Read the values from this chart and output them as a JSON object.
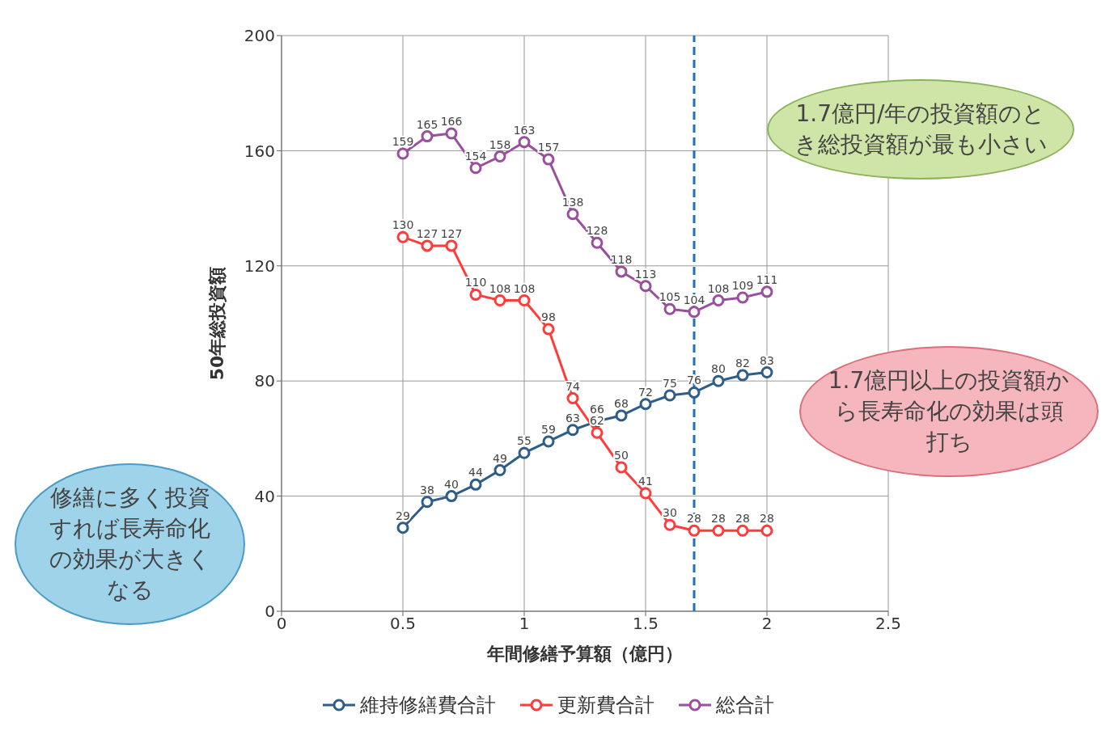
{
  "chart_data": {
    "type": "line",
    "xlabel": "年間修繕予算額（億円）",
    "ylabel": "50年総投資額",
    "x": [
      0.5,
      0.6,
      0.7,
      0.8,
      0.9,
      1.0,
      1.1,
      1.2,
      1.3,
      1.4,
      1.5,
      1.6,
      1.7,
      1.8,
      1.9,
      2.0
    ],
    "series": [
      {
        "name": "維持修繕費合計",
        "color": "#2e5d87",
        "values": [
          29,
          38,
          40,
          44,
          49,
          55,
          59,
          63,
          66,
          68,
          72,
          75,
          76,
          80,
          82,
          83
        ]
      },
      {
        "name": "更新費合計",
        "color": "#ff3b3b",
        "values": [
          130,
          127,
          127,
          110,
          108,
          108,
          98,
          74,
          62,
          50,
          41,
          30,
          28,
          28,
          28,
          28
        ]
      },
      {
        "name": "総合計",
        "color": "#9a4e9e",
        "values": [
          159,
          165,
          166,
          154,
          158,
          163,
          157,
          138,
          128,
          118,
          113,
          105,
          104,
          108,
          109,
          111
        ]
      }
    ],
    "xlim": [
      0,
      2.5
    ],
    "xticks": [
      0,
      0.5,
      1,
      1.5,
      2,
      2.5
    ],
    "ylim": [
      0,
      200
    ],
    "yticks": [
      0,
      40,
      80,
      120,
      160,
      200
    ],
    "grid": true,
    "legend": "bottom",
    "marker": "circle",
    "data_labels": true,
    "ref_lines": [
      {
        "axis": "x",
        "value": 1.7,
        "color": "#1f6fc0",
        "line_style": "dashed"
      }
    ],
    "annotations": [
      "1.7億円/年の投資額のとき総投資額が最も小さい",
      "1.7億円以上の投資額から長寿命化の効果は頭打ち",
      "修繕に多く投資すれば長寿命化の効果が大きくなる"
    ]
  }
}
